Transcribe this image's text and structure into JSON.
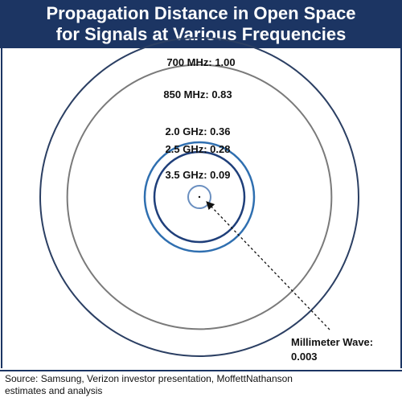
{
  "title": {
    "line1": "Propagation Distance in Open Space",
    "line2": "for Signals at Various Frequencies"
  },
  "circles": [
    {
      "label": "700 MHz: 1.00",
      "relative_distance": 1.0,
      "color": "#2b3f63"
    },
    {
      "label": "850 MHz: 0.83",
      "relative_distance": 0.83,
      "color": "#7a7a7a"
    },
    {
      "label": "2.0 GHz: 0.36",
      "relative_distance": 0.36,
      "color": "#2f6fb0"
    },
    {
      "label": "2.5 GHz: 0.28",
      "relative_distance": 0.28,
      "color": "#1f3f7a"
    },
    {
      "label": "3.5 GHz: 0.09",
      "relative_distance": 0.09,
      "color": "#6a8fc0"
    }
  ],
  "millimeter_wave": {
    "label_line1": "Millimeter Wave:",
    "label_line2": "0.003",
    "relative_distance": 0.003
  },
  "source": {
    "line1": "Source: Samsung, Verizon investor presentation, MoffettNathanson",
    "line2": "estimates and analysis"
  }
}
